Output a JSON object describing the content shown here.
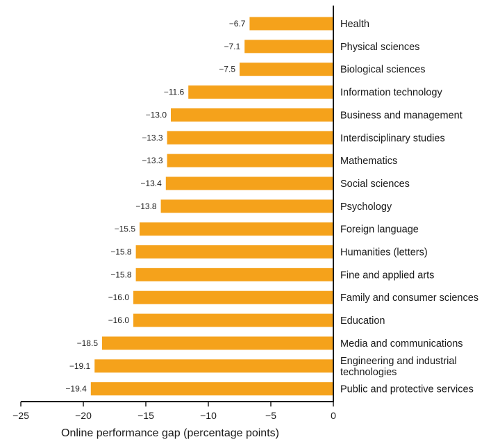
{
  "chart_data": {
    "type": "bar",
    "orientation": "horizontal",
    "categories": [
      "Health",
      "Physical sciences",
      "Biological sciences",
      "Information technology",
      "Business and management",
      "Interdisciplinary studies",
      "Mathematics",
      "Social sciences",
      "Psychology",
      "Foreign language",
      "Humanities (letters)",
      "Fine and applied arts",
      "Family and consumer sciences",
      "Education",
      "Media and communications",
      "Engineering and industrial technologies",
      "Public and protective services"
    ],
    "values": [
      -6.7,
      -7.1,
      -7.5,
      -11.6,
      -13.0,
      -13.3,
      -13.3,
      -13.4,
      -13.8,
      -15.5,
      -15.8,
      -15.8,
      -16.0,
      -16.0,
      -18.5,
      -19.1,
      -19.4
    ],
    "value_labels": [
      "−6.7",
      "−7.1",
      "−7.5",
      "−11.6",
      "−13.0",
      "−13.3",
      "−13.3",
      "−13.4",
      "−13.8",
      "−15.5",
      "−15.8",
      "−15.8",
      "−16.0",
      "−16.0",
      "−18.5",
      "−19.1",
      "−19.4"
    ],
    "xlabel": "Online performance gap (percentage points)",
    "ylabel": "",
    "xlim": [
      -25,
      0
    ],
    "xticks": [
      -25,
      -20,
      -15,
      -10,
      -5,
      0
    ],
    "xtick_labels": [
      "−25",
      "−20",
      "−15",
      "−10",
      "−5",
      "0"
    ],
    "bar_color": "#f5a21b",
    "grid": false,
    "legend": "none"
  }
}
